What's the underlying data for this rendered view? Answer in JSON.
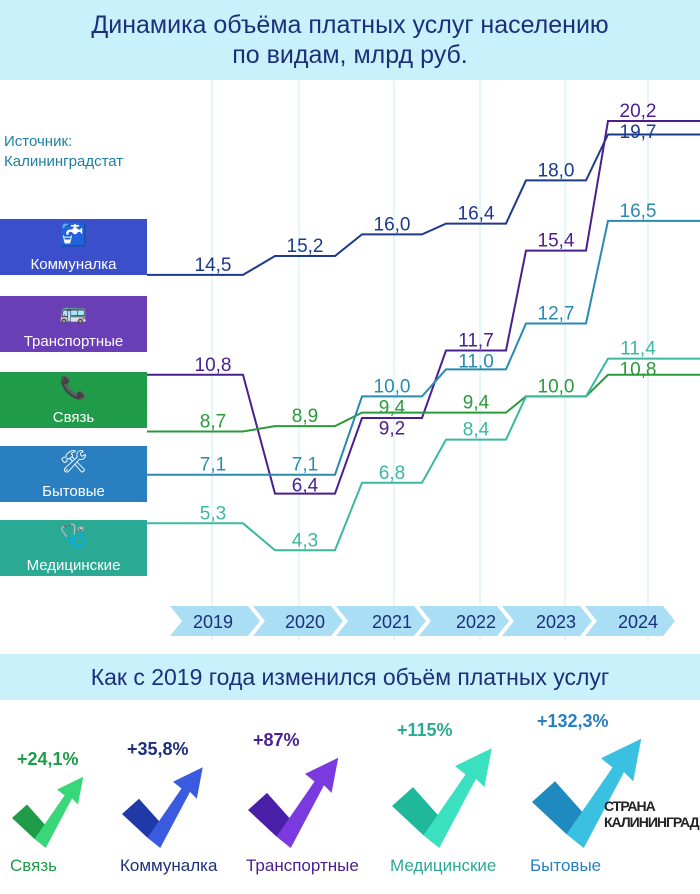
{
  "title": "Динамика объёма платных услуг населению",
  "title_line2": "по видам, млрд руб.",
  "source_label": "Источник:",
  "source_name": "Калининградстат",
  "chart_data": {
    "type": "line",
    "title": "Динамика объёма платных услуг населению по видам, млрд руб.",
    "categories": [
      "2019",
      "2020",
      "2021",
      "2022",
      "2023",
      "2024"
    ],
    "series": [
      {
        "name": "Коммуналка",
        "color": "#1d3a8a",
        "box": "#3a4fc9",
        "icon": "water-tap-icon",
        "values": [
          14.5,
          15.2,
          16.0,
          16.4,
          18.0,
          19.7
        ],
        "labels": [
          "14,5",
          "15,2",
          "16,0",
          "16,4",
          "18,0",
          "19,7"
        ]
      },
      {
        "name": "Транспортные",
        "color": "#4a1f8f",
        "box": "#6a3fb5",
        "icon": "bus-icon",
        "values": [
          10.8,
          6.4,
          9.2,
          11.7,
          15.4,
          20.2
        ],
        "labels": [
          "10,8",
          "6,4",
          "9,2",
          "11,7",
          "15,4",
          "20,2"
        ]
      },
      {
        "name": "Связь",
        "color": "#2a9a3a",
        "box": "#1f9b4a",
        "icon": "phone-icon",
        "values": [
          8.7,
          8.9,
          9.4,
          9.4,
          10.0,
          10.8
        ],
        "labels": [
          "8,7",
          "8,9",
          "9,4",
          "9,4",
          "10,0",
          "10,8"
        ]
      },
      {
        "name": "Бытовые",
        "color": "#2a8ab0",
        "box": "#2a7fc0",
        "icon": "tools-icon",
        "values": [
          7.1,
          7.1,
          10.0,
          11.0,
          12.7,
          16.5
        ],
        "labels": [
          "7,1",
          "7,1",
          "10,0",
          "11,0",
          "12,7",
          "16,5"
        ]
      },
      {
        "name": "Медицинские",
        "color": "#3ab8a0",
        "box": "#2aaa94",
        "icon": "medkit-icon",
        "values": [
          5.3,
          4.3,
          6.8,
          8.4,
          10.0,
          11.4
        ],
        "labels": [
          "5,3",
          "4,3",
          "6,8",
          "8,4",
          "",
          "11,4"
        ]
      }
    ]
  },
  "growth": {
    "title": "Как с 2019 года изменился объём платных услуг",
    "items": [
      {
        "name": "Связь",
        "pct": "+24,1%",
        "c1": "#1f9b4a",
        "c2": "#3ad67a",
        "text": "#1f9b4a"
      },
      {
        "name": "Коммуналка",
        "pct": "+35,8%",
        "c1": "#1f3aa8",
        "c2": "#3a5ae0",
        "text": "#1d2f7a"
      },
      {
        "name": "Транспортные",
        "pct": "+87%",
        "c1": "#4a1fa8",
        "c2": "#7a3ae0",
        "text": "#4a1f8f"
      },
      {
        "name": "Медицинские",
        "pct": "+115%",
        "c1": "#1fb89a",
        "c2": "#3ae0c0",
        "text": "#2aaa94"
      },
      {
        "name": "Бытовые",
        "pct": "+132,3%",
        "c1": "#1f8ac0",
        "c2": "#3ac0e0",
        "text": "#2a7fc0"
      }
    ]
  },
  "watermark": "СТРАНА КАЛИНИНГРАД"
}
